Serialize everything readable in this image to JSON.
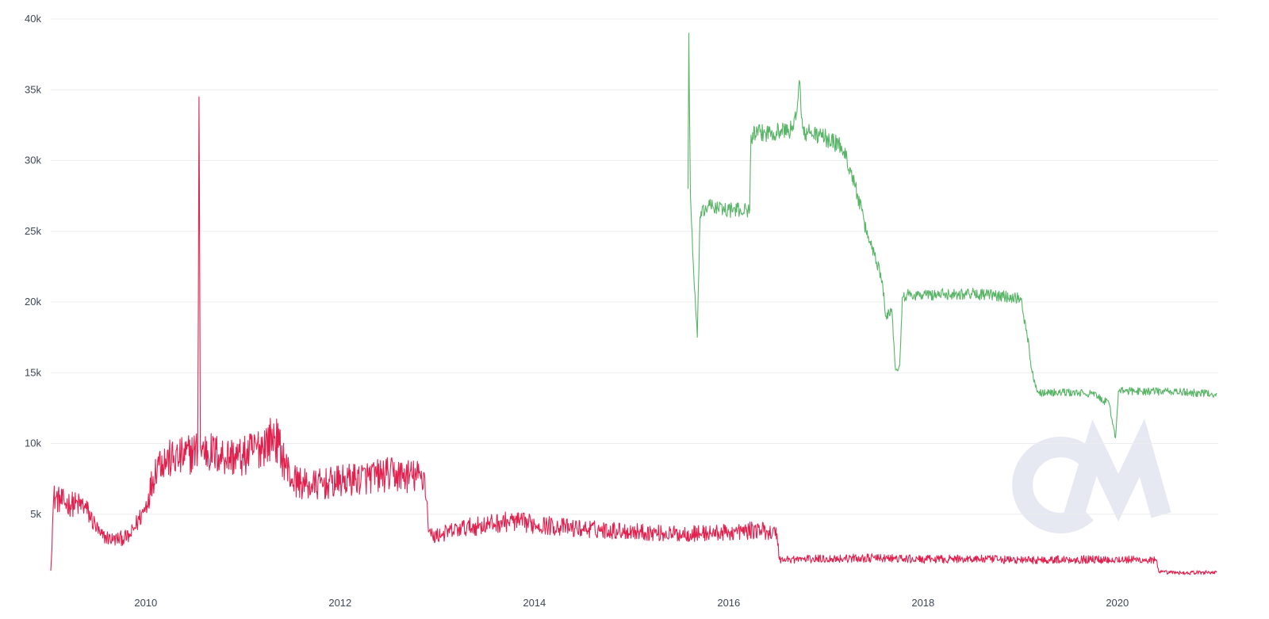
{
  "chart_data": {
    "type": "line",
    "title": "",
    "xlabel": "",
    "ylabel": "",
    "x_ticks": [
      "2010",
      "2012",
      "2014",
      "2016",
      "2018",
      "2020"
    ],
    "y_ticks": [
      "5k",
      "10k",
      "15k",
      "20k",
      "25k",
      "30k",
      "35k",
      "40k"
    ],
    "ylim": [
      0,
      40000
    ],
    "xlim": [
      "2009-01-09",
      "2021-01-15"
    ],
    "grid": true,
    "legend": "none",
    "watermark": "CM",
    "series": [
      {
        "color": "#e2204e",
        "x": [
          "2009-01-09",
          "2009-01-20",
          "2009-03-01",
          "2009-05-15",
          "2009-07-15",
          "2009-09-01",
          "2009-11-01",
          "2009-12-31",
          "2010-02-15",
          "2010-05-01",
          "2010-07-15",
          "2010-07-20",
          "2010-07-25",
          "2010-10-01",
          "2011-01-01",
          "2011-05-01",
          "2011-07-01",
          "2011-09-01",
          "2011-12-01",
          "2012-03-01",
          "2012-07-01",
          "2012-11-15",
          "2012-12-01",
          "2012-12-15",
          "2013-04-01",
          "2013-10-01",
          "2014-01-01",
          "2014-06-01",
          "2015-01-01",
          "2015-06-01",
          "2016-01-01",
          "2016-05-01",
          "2016-07-01",
          "2016-07-10",
          "2017-01-01",
          "2017-07-01",
          "2018-01-01",
          "2018-07-01",
          "2019-01-01",
          "2019-07-01",
          "2020-01-01",
          "2020-05-25",
          "2020-06-05",
          "2020-09-01",
          "2021-01-10"
        ],
        "values": [
          1000,
          6200,
          5800,
          5600,
          3500,
          3200,
          3400,
          5500,
          8800,
          8900,
          9500,
          34500,
          9600,
          9200,
          9000,
          10500,
          7500,
          7000,
          7200,
          7500,
          7800,
          7600,
          3800,
          3400,
          4000,
          4500,
          4300,
          4000,
          3800,
          3600,
          3700,
          3900,
          3600,
          1800,
          1850,
          1900,
          1800,
          1850,
          1750,
          1800,
          1800,
          1750,
          900,
          850,
          900
        ]
      },
      {
        "color": "#58b466",
        "x": [
          "2015-08-01",
          "2015-08-04",
          "2015-08-10",
          "2015-08-25",
          "2015-09-05",
          "2015-09-15",
          "2015-10-15",
          "2016-01-01",
          "2016-03-20",
          "2016-03-25",
          "2016-06-01",
          "2016-09-01",
          "2016-09-25",
          "2016-10-01",
          "2016-10-10",
          "2016-10-25",
          "2017-01-01",
          "2017-03-01",
          "2017-04-01",
          "2017-05-01",
          "2017-06-01",
          "2017-07-01",
          "2017-08-01",
          "2017-08-15",
          "2017-09-05",
          "2017-09-20",
          "2017-10-05",
          "2017-10-15",
          "2017-11-01",
          "2018-01-01",
          "2018-07-01",
          "2019-01-01",
          "2019-01-25",
          "2019-02-15",
          "2019-03-10",
          "2019-07-01",
          "2019-10-01",
          "2019-12-01",
          "2019-12-25",
          "2020-01-05",
          "2020-04-01",
          "2020-08-01",
          "2021-01-10"
        ],
        "values": [
          28000,
          39000,
          27500,
          21000,
          17500,
          26000,
          26800,
          26500,
          26500,
          31800,
          32000,
          32200,
          35500,
          33000,
          31800,
          32000,
          31600,
          31000,
          29500,
          27500,
          25000,
          23500,
          21500,
          19000,
          19500,
          15200,
          15500,
          20300,
          20500,
          20500,
          20600,
          20300,
          18000,
          15000,
          13600,
          13600,
          13500,
          12800,
          10400,
          13700,
          13700,
          13650,
          13500
        ]
      }
    ]
  }
}
